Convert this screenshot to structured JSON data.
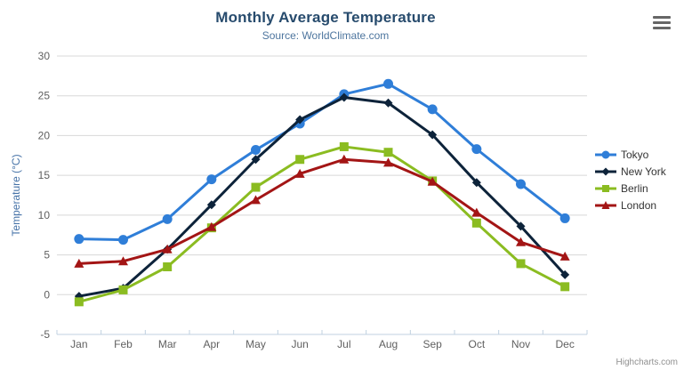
{
  "chart_data": {
    "type": "line",
    "title": "Monthly Average Temperature",
    "subtitle": "Source: WorldClimate.com",
    "categories": [
      "Jan",
      "Feb",
      "Mar",
      "Apr",
      "May",
      "Jun",
      "Jul",
      "Aug",
      "Sep",
      "Oct",
      "Nov",
      "Dec"
    ],
    "xlabel": "",
    "ylabel": "Temperature (°C)",
    "ylim": [
      -5,
      30
    ],
    "ytick_step": 5,
    "grid": true,
    "legend_position": "right",
    "series": [
      {
        "name": "Tokyo",
        "color": "#2f7ed8",
        "marker": "circle",
        "values": [
          7.0,
          6.9,
          9.5,
          14.5,
          18.2,
          21.5,
          25.2,
          26.5,
          23.3,
          18.3,
          13.9,
          9.6
        ]
      },
      {
        "name": "New York",
        "color": "#0d233a",
        "marker": "diamond",
        "values": [
          -0.2,
          0.8,
          5.7,
          11.3,
          17.0,
          22.0,
          24.8,
          24.1,
          20.1,
          14.1,
          8.6,
          2.5
        ]
      },
      {
        "name": "Berlin",
        "color": "#8bbc21",
        "marker": "square",
        "values": [
          -0.9,
          0.6,
          3.5,
          8.4,
          13.5,
          17.0,
          18.6,
          17.9,
          14.3,
          9.0,
          3.9,
          1.0
        ]
      },
      {
        "name": "London",
        "color": "#a31515",
        "marker": "triangle",
        "values": [
          3.9,
          4.2,
          5.7,
          8.5,
          11.9,
          15.2,
          17.0,
          16.6,
          14.2,
          10.3,
          6.6,
          4.8
        ]
      }
    ]
  },
  "colors": {
    "grid_line": "#d8d8d8",
    "axis_line": "#c0d0e0",
    "axis_label": "#606060",
    "axis_title": "#4572a7",
    "title": "#274b6d",
    "subtitle": "#4d759e",
    "legend_text": "#333333"
  },
  "credits": {
    "label": "Highcharts.com"
  },
  "export_menu": {
    "icon": "hamburger-icon"
  }
}
